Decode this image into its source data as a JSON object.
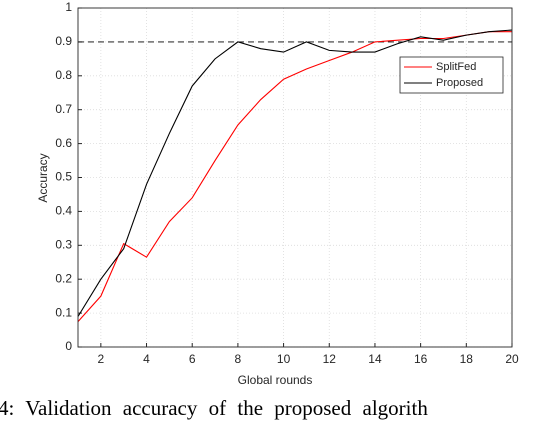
{
  "chart_data": {
    "type": "line",
    "x": [
      1,
      2,
      3,
      4,
      5,
      6,
      7,
      8,
      9,
      10,
      11,
      12,
      13,
      14,
      15,
      16,
      17,
      18,
      19,
      20
    ],
    "series": [
      {
        "name": "SplitFed",
        "color": "#ff0000",
        "values": [
          0.075,
          0.15,
          0.305,
          0.265,
          0.37,
          0.44,
          0.55,
          0.655,
          0.73,
          0.79,
          0.82,
          0.845,
          0.87,
          0.9,
          0.905,
          0.91,
          0.91,
          0.92,
          0.93,
          0.93
        ]
      },
      {
        "name": "Proposed",
        "color": "#000000",
        "values": [
          0.09,
          0.2,
          0.29,
          0.48,
          0.63,
          0.77,
          0.85,
          0.9,
          0.88,
          0.87,
          0.9,
          0.875,
          0.87,
          0.87,
          0.895,
          0.915,
          0.905,
          0.92,
          0.93,
          0.935
        ]
      }
    ],
    "reference_line": 0.9,
    "xlabel": "Global rounds",
    "ylabel": "Accuracy",
    "xlim": [
      1,
      20
    ],
    "xticks": [
      2,
      4,
      6,
      8,
      10,
      12,
      14,
      16,
      18,
      20
    ],
    "ylim": [
      0,
      1
    ],
    "yticks": [
      0,
      0.1,
      0.2,
      0.3,
      0.4,
      0.5,
      0.6,
      0.7,
      0.8,
      0.9,
      1
    ],
    "grid": true,
    "legend": "upper right",
    "caption": "4: Validation accuracy of the proposed algorith"
  }
}
